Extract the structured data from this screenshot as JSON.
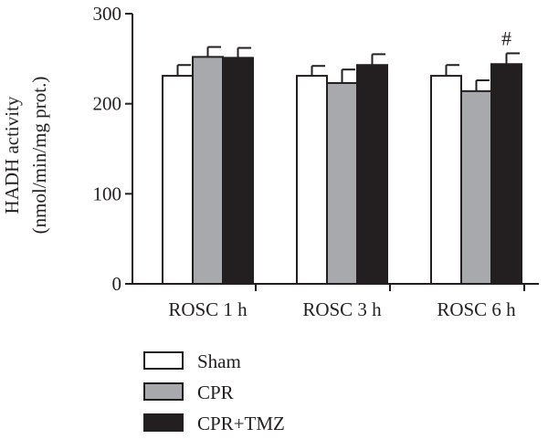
{
  "chart_data": {
    "type": "bar",
    "ylabel": [
      "HADH activity",
      "(nmol/min/mg prot.)"
    ],
    "xlabel": "",
    "ylim": [
      0,
      300
    ],
    "yticks": [
      0,
      100,
      200,
      300
    ],
    "categories": [
      "ROSC 1 h",
      "ROSC 3 h",
      "ROSC 6 h"
    ],
    "series": [
      {
        "name": "Sham",
        "color": "#ffffff",
        "values": [
          231,
          231,
          231
        ],
        "errors": [
          12,
          11,
          12
        ]
      },
      {
        "name": "CPR",
        "color": "#a7a9ac",
        "values": [
          252,
          223,
          214
        ],
        "errors": [
          11,
          15,
          12
        ]
      },
      {
        "name": "CPR+TMZ",
        "color": "#231f20",
        "values": [
          251,
          243,
          244
        ],
        "errors": [
          11,
          12,
          12
        ]
      }
    ],
    "annotations": [
      {
        "category": "ROSC 6 h",
        "series": "CPR+TMZ",
        "text": "#"
      }
    ],
    "legend_position": "bottom-left",
    "grid": false
  }
}
